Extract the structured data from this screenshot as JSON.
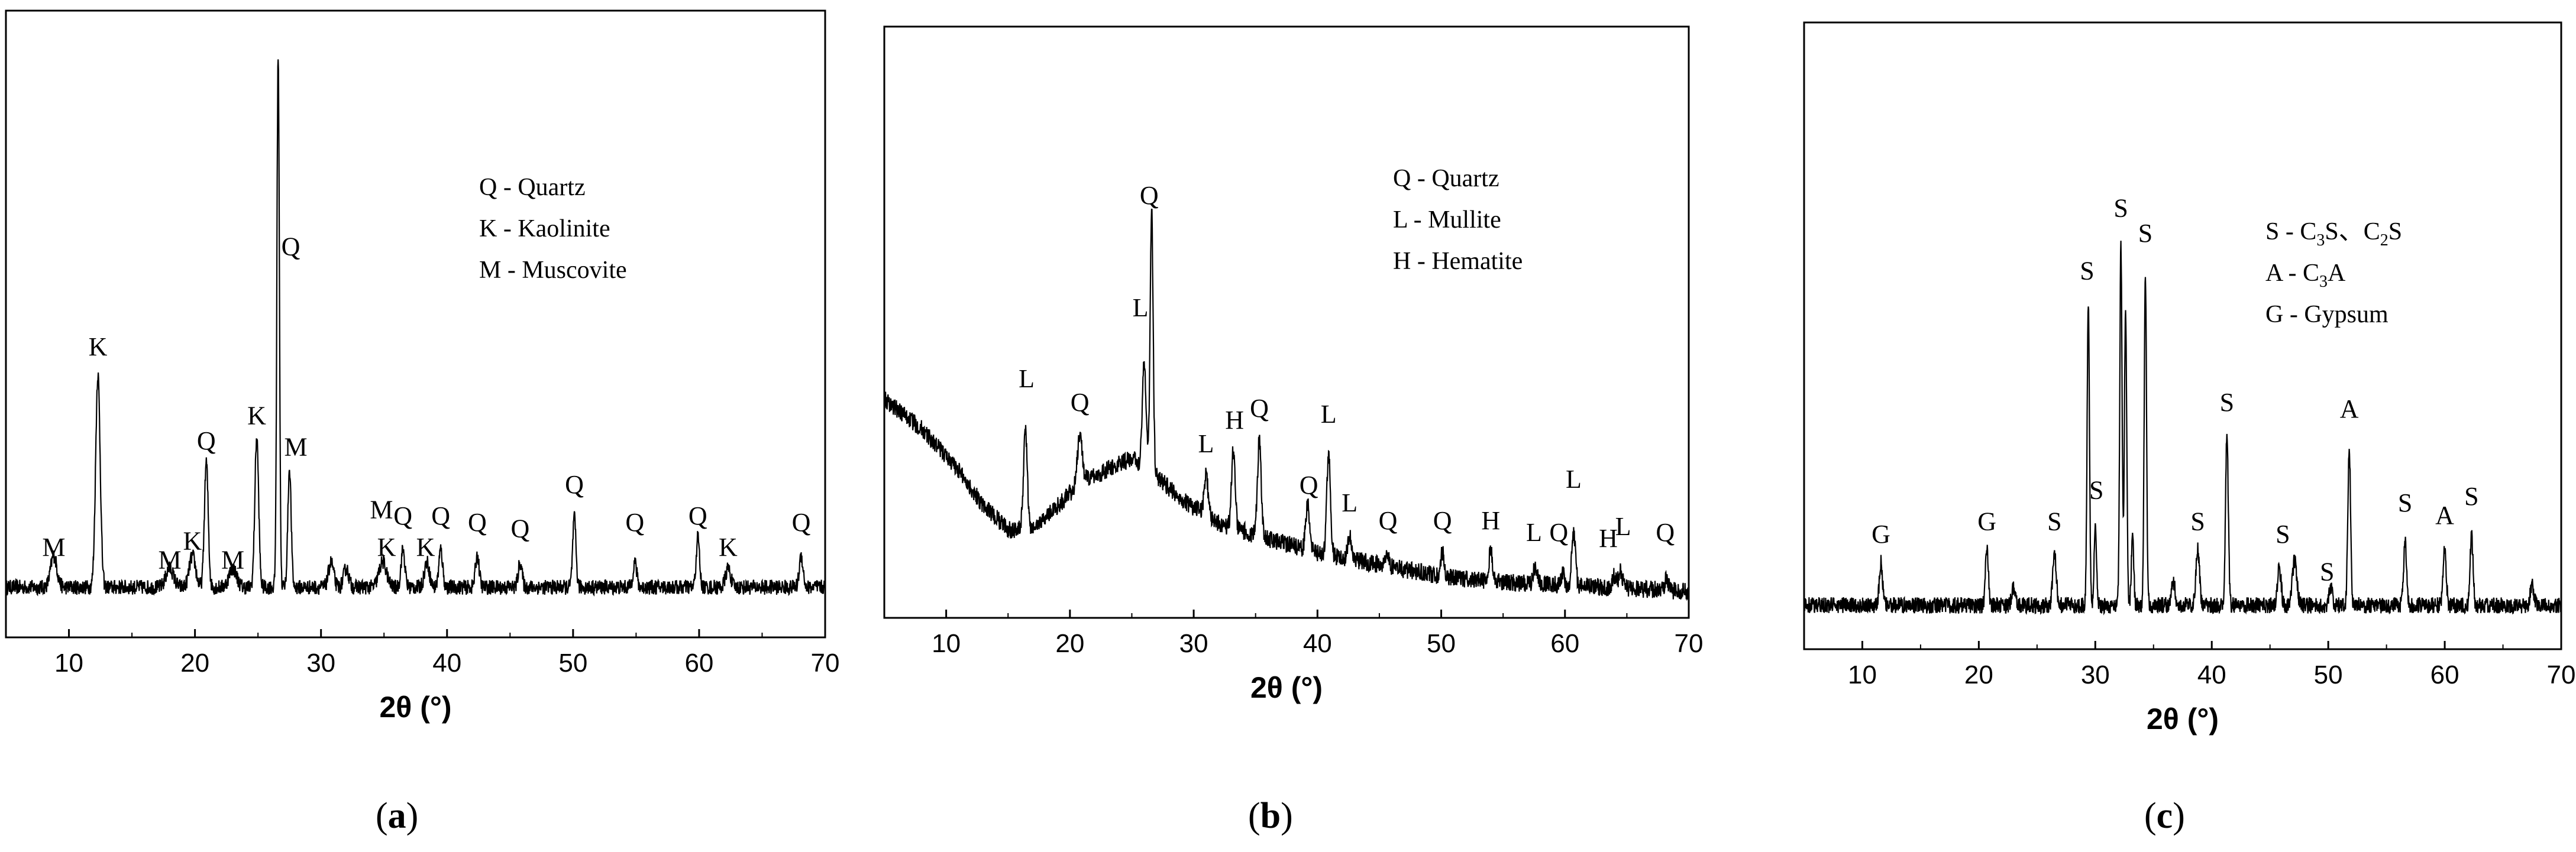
{
  "chart_data": [
    {
      "id": "a",
      "type": "line",
      "caption": "a",
      "xlabel": "2θ (°)",
      "xlim": [
        5,
        70
      ],
      "xticks": [
        10,
        20,
        30,
        40,
        50,
        60,
        70
      ],
      "ylim": [
        0,
        100
      ],
      "yticks_shown": false,
      "legend": [
        "Q - Quartz",
        "K - Kaolinite",
        "M - Muscovite"
      ],
      "legend_position": "top-right",
      "baseline": 8,
      "noise": 1.2,
      "peaks": [
        {
          "x": 8.8,
          "h": 5,
          "w": 0.25
        },
        {
          "x": 12.3,
          "h": 34,
          "w": 0.18
        },
        {
          "x": 18.0,
          "h": 3,
          "w": 0.3
        },
        {
          "x": 19.8,
          "h": 5,
          "w": 0.25
        },
        {
          "x": 20.9,
          "h": 20,
          "w": 0.15
        },
        {
          "x": 23.0,
          "h": 3,
          "w": 0.3
        },
        {
          "x": 24.9,
          "h": 24,
          "w": 0.15
        },
        {
          "x": 26.6,
          "h": 85,
          "w": 0.1
        },
        {
          "x": 27.5,
          "h": 19,
          "w": 0.13
        },
        {
          "x": 30.8,
          "h": 4,
          "w": 0.2
        },
        {
          "x": 32.0,
          "h": 3,
          "w": 0.2
        },
        {
          "x": 34.9,
          "h": 4,
          "w": 0.3
        },
        {
          "x": 36.5,
          "h": 6,
          "w": 0.15
        },
        {
          "x": 38.4,
          "h": 4,
          "w": 0.2
        },
        {
          "x": 39.5,
          "h": 6,
          "w": 0.15
        },
        {
          "x": 42.4,
          "h": 5,
          "w": 0.15
        },
        {
          "x": 45.8,
          "h": 4,
          "w": 0.15
        },
        {
          "x": 50.1,
          "h": 11,
          "w": 0.13
        },
        {
          "x": 54.9,
          "h": 4,
          "w": 0.15
        },
        {
          "x": 59.9,
          "h": 8,
          "w": 0.13
        },
        {
          "x": 62.3,
          "h": 3,
          "w": 0.2
        },
        {
          "x": 68.1,
          "h": 5,
          "w": 0.15
        }
      ],
      "annotations": [
        {
          "text": "M",
          "x": 8.8,
          "y": 13
        },
        {
          "text": "K",
          "x": 12.3,
          "y": 45
        },
        {
          "text": "M",
          "x": 18.0,
          "y": 11
        },
        {
          "text": "K",
          "x": 19.8,
          "y": 14
        },
        {
          "text": "Q",
          "x": 20.9,
          "y": 30
        },
        {
          "text": "M",
          "x": 23.0,
          "y": 11
        },
        {
          "text": "K",
          "x": 24.9,
          "y": 34
        },
        {
          "text": "Q",
          "x": 27.6,
          "y": 61
        },
        {
          "text": "M",
          "x": 28.0,
          "y": 29
        },
        {
          "text": "M",
          "x": 34.8,
          "y": 19
        },
        {
          "text": "Q",
          "x": 36.5,
          "y": 18
        },
        {
          "text": "K",
          "x": 35.2,
          "y": 13
        },
        {
          "text": "K",
          "x": 38.3,
          "y": 13
        },
        {
          "text": "Q",
          "x": 39.5,
          "y": 18
        },
        {
          "text": "Q",
          "x": 42.4,
          "y": 17
        },
        {
          "text": "Q",
          "x": 45.8,
          "y": 16
        },
        {
          "text": "Q",
          "x": 50.1,
          "y": 23
        },
        {
          "text": "Q",
          "x": 54.9,
          "y": 17
        },
        {
          "text": "Q",
          "x": 59.9,
          "y": 18
        },
        {
          "text": "K",
          "x": 62.3,
          "y": 13
        },
        {
          "text": "Q",
          "x": 68.1,
          "y": 17
        }
      ]
    },
    {
      "id": "b",
      "type": "line",
      "caption": "b",
      "xlabel": "2θ (°)",
      "xlim": [
        5,
        70
      ],
      "xticks": [
        10,
        20,
        30,
        40,
        50,
        60,
        70
      ],
      "ylim": [
        0,
        100
      ],
      "yticks_shown": false,
      "legend": [
        "Q - Quartz",
        "L - Mullite",
        "H - Hematite"
      ],
      "legend_position": "top-right",
      "background": [
        [
          5,
          37
        ],
        [
          8,
          32
        ],
        [
          11,
          25
        ],
        [
          13,
          19
        ],
        [
          15,
          15
        ],
        [
          17,
          15
        ],
        [
          19,
          19
        ],
        [
          21,
          23
        ],
        [
          23,
          25
        ],
        [
          25,
          27
        ],
        [
          27,
          24
        ],
        [
          29,
          20
        ],
        [
          32,
          16
        ],
        [
          35,
          14
        ],
        [
          40,
          11
        ],
        [
          45,
          9
        ],
        [
          50,
          7
        ],
        [
          55,
          6
        ],
        [
          60,
          5.5
        ],
        [
          65,
          5
        ],
        [
          70,
          4.5
        ]
      ],
      "noise": 1.5,
      "peaks": [
        {
          "x": 16.4,
          "h": 17,
          "w": 0.15
        },
        {
          "x": 20.8,
          "h": 8,
          "w": 0.2
        },
        {
          "x": 26.0,
          "h": 18,
          "w": 0.15
        },
        {
          "x": 26.6,
          "h": 44,
          "w": 0.12
        },
        {
          "x": 31.0,
          "h": 7,
          "w": 0.15
        },
        {
          "x": 33.2,
          "h": 13,
          "w": 0.15
        },
        {
          "x": 35.3,
          "h": 16,
          "w": 0.15
        },
        {
          "x": 39.2,
          "h": 8,
          "w": 0.15
        },
        {
          "x": 40.9,
          "h": 17,
          "w": 0.15
        },
        {
          "x": 42.6,
          "h": 4,
          "w": 0.15
        },
        {
          "x": 45.6,
          "h": 2,
          "w": 0.15
        },
        {
          "x": 50.1,
          "h": 4,
          "w": 0.15
        },
        {
          "x": 54.0,
          "h": 5,
          "w": 0.15
        },
        {
          "x": 57.6,
          "h": 3,
          "w": 0.15
        },
        {
          "x": 59.8,
          "h": 2,
          "w": 0.15
        },
        {
          "x": 60.7,
          "h": 9,
          "w": 0.15
        },
        {
          "x": 64.0,
          "h": 2,
          "w": 0.15
        },
        {
          "x": 64.5,
          "h": 3,
          "w": 0.15
        },
        {
          "x": 68.2,
          "h": 2,
          "w": 0.15
        }
      ],
      "annotations": [
        {
          "text": "L",
          "x": 16.5,
          "y": 39
        },
        {
          "text": "Q",
          "x": 20.8,
          "y": 35
        },
        {
          "text": "L",
          "x": 25.7,
          "y": 51
        },
        {
          "text": "Q",
          "x": 26.4,
          "y": 70
        },
        {
          "text": "L",
          "x": 31.0,
          "y": 28
        },
        {
          "text": "H",
          "x": 33.3,
          "y": 32
        },
        {
          "text": "Q",
          "x": 35.3,
          "y": 34
        },
        {
          "text": "Q",
          "x": 39.3,
          "y": 21
        },
        {
          "text": "L",
          "x": 40.9,
          "y": 33
        },
        {
          "text": "L",
          "x": 42.6,
          "y": 18
        },
        {
          "text": "Q",
          "x": 45.7,
          "y": 15
        },
        {
          "text": "Q",
          "x": 50.1,
          "y": 15
        },
        {
          "text": "H",
          "x": 54.0,
          "y": 15
        },
        {
          "text": "L",
          "x": 57.5,
          "y": 13
        },
        {
          "text": "Q",
          "x": 59.5,
          "y": 13
        },
        {
          "text": "L",
          "x": 60.7,
          "y": 22
        },
        {
          "text": "H",
          "x": 63.5,
          "y": 12
        },
        {
          "text": "L",
          "x": 64.7,
          "y": 14
        },
        {
          "text": "Q",
          "x": 68.1,
          "y": 13
        }
      ]
    },
    {
      "id": "c",
      "type": "line",
      "caption": "c",
      "xlabel": "2θ (°)",
      "xlim": [
        5,
        70
      ],
      "xticks": [
        10,
        20,
        30,
        40,
        50,
        60,
        70
      ],
      "ylim": [
        0,
        100
      ],
      "yticks_shown": false,
      "legend": [
        {
          "prefix": "S - C",
          "parts": [
            {
              "t": "3",
              "sub": true
            },
            {
              "t": "S、C",
              "sub": false
            },
            {
              "t": "2",
              "sub": true
            },
            {
              "t": "S",
              "sub": false
            }
          ]
        },
        {
          "prefix": "A - C",
          "parts": [
            {
              "t": "3",
              "sub": true
            },
            {
              "t": "A",
              "sub": false
            }
          ]
        },
        {
          "prefix": "G - Gypsum",
          "parts": []
        }
      ],
      "legend_position": "top-right",
      "baseline": 7,
      "noise": 1.3,
      "peaks": [
        {
          "x": 11.6,
          "h": 7,
          "w": 0.13
        },
        {
          "x": 20.7,
          "h": 9,
          "w": 0.13
        },
        {
          "x": 23.0,
          "h": 3,
          "w": 0.15
        },
        {
          "x": 26.5,
          "h": 8,
          "w": 0.15
        },
        {
          "x": 29.4,
          "h": 48,
          "w": 0.1
        },
        {
          "x": 30.0,
          "h": 12,
          "w": 0.1
        },
        {
          "x": 32.2,
          "h": 57,
          "w": 0.1
        },
        {
          "x": 32.6,
          "h": 47,
          "w": 0.1
        },
        {
          "x": 33.2,
          "h": 11,
          "w": 0.1
        },
        {
          "x": 34.3,
          "h": 52,
          "w": 0.1
        },
        {
          "x": 36.7,
          "h": 4,
          "w": 0.15
        },
        {
          "x": 38.8,
          "h": 9,
          "w": 0.15
        },
        {
          "x": 41.3,
          "h": 27,
          "w": 0.12
        },
        {
          "x": 45.8,
          "h": 6,
          "w": 0.15
        },
        {
          "x": 47.1,
          "h": 7,
          "w": 0.2
        },
        {
          "x": 50.2,
          "h": 3,
          "w": 0.15
        },
        {
          "x": 51.8,
          "h": 25,
          "w": 0.12
        },
        {
          "x": 56.6,
          "h": 10,
          "w": 0.13
        },
        {
          "x": 60.0,
          "h": 9,
          "w": 0.13
        },
        {
          "x": 62.3,
          "h": 11,
          "w": 0.13
        },
        {
          "x": 67.5,
          "h": 3,
          "w": 0.15
        }
      ],
      "annotations": [
        {
          "text": "G",
          "x": 11.6,
          "y": 17
        },
        {
          "text": "G",
          "x": 20.7,
          "y": 19
        },
        {
          "text": "S",
          "x": 26.5,
          "y": 19
        },
        {
          "text": "S",
          "x": 29.3,
          "y": 59
        },
        {
          "text": "S",
          "x": 30.1,
          "y": 24
        },
        {
          "text": "S",
          "x": 32.2,
          "y": 69
        },
        {
          "text": "S",
          "x": 34.3,
          "y": 65
        },
        {
          "text": "S",
          "x": 38.8,
          "y": 19
        },
        {
          "text": "S",
          "x": 41.3,
          "y": 38
        },
        {
          "text": "A",
          "x": 51.8,
          "y": 37
        },
        {
          "text": "S",
          "x": 46.1,
          "y": 17
        },
        {
          "text": "S",
          "x": 49.9,
          "y": 11
        },
        {
          "text": "S",
          "x": 56.6,
          "y": 22
        },
        {
          "text": "A",
          "x": 60.0,
          "y": 20
        },
        {
          "text": "S",
          "x": 62.3,
          "y": 23
        }
      ]
    }
  ]
}
